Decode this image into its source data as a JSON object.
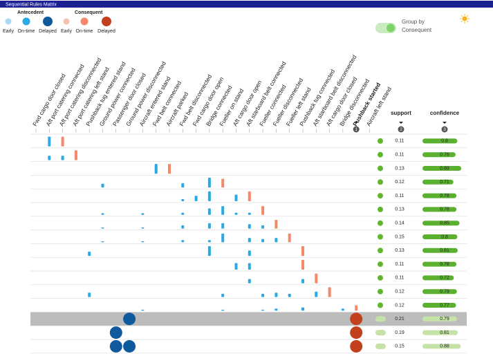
{
  "window": {
    "title": "Sequential Rules Matrix"
  },
  "legend": {
    "antecedent": {
      "label": "Antecedent",
      "items": [
        {
          "name": "Early",
          "color": "#a9d9f2"
        },
        {
          "name": "On-time",
          "color": "#2aa9e4"
        },
        {
          "name": "Delayed",
          "color": "#0e5a9c"
        }
      ]
    },
    "consequent": {
      "label": "Consequent",
      "items": [
        {
          "name": "Early",
          "color": "#f8c1b1"
        },
        {
          "name": "On-time",
          "color": "#f5876a"
        },
        {
          "name": "Delayed",
          "color": "#c2401e"
        }
      ]
    }
  },
  "toggle": {
    "lines": [
      "Group by",
      "Consequent"
    ],
    "on": true
  },
  "columns": [
    "Fwd cargo door closed",
    "Aft port catering connected",
    "Aft port catering disconnected",
    "Aft port catering left stand",
    "Pushback tug entered stand",
    "Ground power connected",
    "Passenger door closed",
    "Ground power disconnected",
    "Aircraft entered stand",
    "Fwd belt connected",
    "Aircraft parked",
    "Fwd belt disconnected",
    "Fwd cargo door open",
    "Bridge connected",
    "Fueller on stand",
    "Aft cargo door open",
    "Aft starboard belt connected",
    "Fueller connected",
    "Fueller disconnected",
    "Fueller left stand",
    "Pushback tug connected",
    "Aft starboard belt disconnected",
    "Aft cargo door closed",
    "Bridge disconnected",
    "Pushback started",
    "Aircraft left stand"
  ],
  "sorted_column": {
    "index": 24,
    "badge": "1"
  },
  "metrics": [
    {
      "label": "support",
      "badge": "2"
    },
    {
      "label": "confidence",
      "badge": "3"
    }
  ],
  "selected_row": 13,
  "group_rows": [
    13,
    14,
    15
  ],
  "rows": [
    {
      "support": 0.11,
      "confidence": 0.8,
      "marks": [
        {
          "col": 1,
          "role": "antecedent",
          "status": 1,
          "h": 0.9
        },
        {
          "col": 2,
          "role": "consequent",
          "status": 1,
          "h": 0.9
        }
      ]
    },
    {
      "support": 0.11,
      "confidence": 0.76,
      "marks": [
        {
          "col": 1,
          "role": "antecedent",
          "status": 1,
          "h": 0.4
        },
        {
          "col": 2,
          "role": "antecedent",
          "status": 1,
          "h": 0.4
        },
        {
          "col": 3,
          "role": "consequent",
          "status": 1,
          "h": 0.9
        }
      ]
    },
    {
      "support": 0.13,
      "confidence": 0.89,
      "marks": [
        {
          "col": 9,
          "role": "antecedent",
          "status": 1,
          "h": 0.9
        },
        {
          "col": 10,
          "role": "consequent",
          "status": 1,
          "h": 0.9
        }
      ]
    },
    {
      "support": 0.12,
      "confidence": 0.71,
      "marks": [
        {
          "col": 5,
          "role": "antecedent",
          "status": 1,
          "h": 0.35
        },
        {
          "col": 11,
          "role": "antecedent",
          "status": 1,
          "h": 0.4
        },
        {
          "col": 13,
          "role": "antecedent",
          "status": 1,
          "h": 0.9
        },
        {
          "col": 14,
          "role": "consequent",
          "status": 1,
          "h": 0.8
        }
      ]
    },
    {
      "support": 0.11,
      "confidence": 0.78,
      "marks": [
        {
          "col": 11,
          "role": "antecedent",
          "status": 1,
          "h": 0.2
        },
        {
          "col": 12,
          "role": "antecedent",
          "status": 1,
          "h": 0.5
        },
        {
          "col": 13,
          "role": "antecedent",
          "status": 1,
          "h": 0.9
        },
        {
          "col": 15,
          "role": "antecedent",
          "status": 1,
          "h": 0.6
        },
        {
          "col": 16,
          "role": "consequent",
          "status": 1,
          "h": 0.9
        }
      ]
    },
    {
      "support": 0.13,
      "confidence": 0.78,
      "marks": [
        {
          "col": 5,
          "role": "antecedent",
          "status": 1,
          "h": 0.15
        },
        {
          "col": 8,
          "role": "antecedent",
          "status": 1,
          "h": 0.15
        },
        {
          "col": 11,
          "role": "antecedent",
          "status": 1,
          "h": 0.2
        },
        {
          "col": 13,
          "role": "antecedent",
          "status": 1,
          "h": 0.6
        },
        {
          "col": 14,
          "role": "antecedent",
          "status": 1,
          "h": 0.8
        },
        {
          "col": 15,
          "role": "antecedent",
          "status": 1,
          "h": 0.2
        },
        {
          "col": 16,
          "role": "antecedent",
          "status": 1,
          "h": 0.2
        },
        {
          "col": 17,
          "role": "consequent",
          "status": 1,
          "h": 0.8
        }
      ]
    },
    {
      "support": 0.14,
      "confidence": 0.85,
      "marks": [
        {
          "col": 5,
          "role": "antecedent",
          "status": 1,
          "h": 0.1
        },
        {
          "col": 8,
          "role": "antecedent",
          "status": 1,
          "h": 0.1
        },
        {
          "col": 11,
          "role": "antecedent",
          "status": 1,
          "h": 0.3
        },
        {
          "col": 13,
          "role": "antecedent",
          "status": 1,
          "h": 0.5
        },
        {
          "col": 14,
          "role": "antecedent",
          "status": 1,
          "h": 0.5
        },
        {
          "col": 16,
          "role": "antecedent",
          "status": 1,
          "h": 0.4
        },
        {
          "col": 17,
          "role": "antecedent",
          "status": 1,
          "h": 0.3
        },
        {
          "col": 18,
          "role": "consequent",
          "status": 1,
          "h": 0.8
        }
      ]
    },
    {
      "support": 0.15,
      "confidence": 0.8,
      "marks": [
        {
          "col": 5,
          "role": "antecedent",
          "status": 1,
          "h": 0.1
        },
        {
          "col": 8,
          "role": "antecedent",
          "status": 1,
          "h": 0.1
        },
        {
          "col": 11,
          "role": "antecedent",
          "status": 1,
          "h": 0.2
        },
        {
          "col": 13,
          "role": "antecedent",
          "status": 1,
          "h": 0.2
        },
        {
          "col": 14,
          "role": "antecedent",
          "status": 1,
          "h": 0.8
        },
        {
          "col": 16,
          "role": "antecedent",
          "status": 1,
          "h": 0.4
        },
        {
          "col": 17,
          "role": "antecedent",
          "status": 1,
          "h": 0.3
        },
        {
          "col": 18,
          "role": "antecedent",
          "status": 1,
          "h": 0.4
        },
        {
          "col": 19,
          "role": "consequent",
          "status": 1,
          "h": 0.8
        }
      ]
    },
    {
      "support": 0.13,
      "confidence": 0.81,
      "marks": [
        {
          "col": 4,
          "role": "antecedent",
          "status": 1,
          "h": 0.4
        },
        {
          "col": 13,
          "role": "antecedent",
          "status": 1,
          "h": 0.9
        },
        {
          "col": 16,
          "role": "antecedent",
          "status": 1,
          "h": 0.5
        },
        {
          "col": 20,
          "role": "consequent",
          "status": 1,
          "h": 0.9
        }
      ]
    },
    {
      "support": 0.11,
      "confidence": 0.78,
      "marks": [
        {
          "col": 15,
          "role": "antecedent",
          "status": 1,
          "h": 0.6
        },
        {
          "col": 16,
          "role": "antecedent",
          "status": 1,
          "h": 0.6
        },
        {
          "col": 20,
          "role": "consequent",
          "status": 1,
          "h": 0.9
        }
      ]
    },
    {
      "support": 0.11,
      "confidence": 0.72,
      "marks": [
        {
          "col": 16,
          "role": "antecedent",
          "status": 1,
          "h": 0.4
        },
        {
          "col": 20,
          "role": "antecedent",
          "status": 1,
          "h": 0.4
        },
        {
          "col": 21,
          "role": "consequent",
          "status": 1,
          "h": 0.9
        }
      ]
    },
    {
      "support": 0.12,
      "confidence": 0.79,
      "marks": [
        {
          "col": 4,
          "role": "antecedent",
          "status": 1,
          "h": 0.4
        },
        {
          "col": 14,
          "role": "antecedent",
          "status": 1,
          "h": 0.3
        },
        {
          "col": 17,
          "role": "antecedent",
          "status": 1,
          "h": 0.3
        },
        {
          "col": 18,
          "role": "antecedent",
          "status": 1,
          "h": 0.4
        },
        {
          "col": 19,
          "role": "antecedent",
          "status": 1,
          "h": 0.3
        },
        {
          "col": 21,
          "role": "antecedent",
          "status": 1,
          "h": 0.5
        },
        {
          "col": 22,
          "role": "consequent",
          "status": 1,
          "h": 0.9
        }
      ]
    },
    {
      "support": 0.12,
      "confidence": 0.77,
      "marks": [
        {
          "col": 8,
          "role": "antecedent",
          "status": 1,
          "h": 0.1
        },
        {
          "col": 14,
          "role": "antecedent",
          "status": 1,
          "h": 0.1
        },
        {
          "col": 17,
          "role": "antecedent",
          "status": 1,
          "h": 0.1
        },
        {
          "col": 18,
          "role": "antecedent",
          "status": 1,
          "h": 0.2
        },
        {
          "col": 20,
          "role": "antecedent",
          "status": 1,
          "h": 0.3
        },
        {
          "col": 23,
          "role": "antecedent",
          "status": 1,
          "h": 0.2
        },
        {
          "col": 24,
          "role": "consequent",
          "status": 1,
          "h": 0.5
        }
      ]
    },
    {
      "support": 0.21,
      "confidence": 0.79,
      "marks": [
        {
          "col": 7,
          "role": "antecedent",
          "status": 2,
          "h": 1
        },
        {
          "col": 24,
          "role": "consequent",
          "status": 2,
          "h": 1
        }
      ]
    },
    {
      "support": 0.19,
      "confidence": 0.81,
      "marks": [
        {
          "col": 6,
          "role": "antecedent",
          "status": 2,
          "h": 1
        },
        {
          "col": 24,
          "role": "consequent",
          "status": 2,
          "h": 1
        }
      ]
    },
    {
      "support": 0.15,
      "confidence": 0.88,
      "marks": [
        {
          "col": 6,
          "role": "antecedent",
          "status": 2,
          "h": 1
        },
        {
          "col": 7,
          "role": "antecedent",
          "status": 2,
          "h": 1
        },
        {
          "col": 24,
          "role": "consequent",
          "status": 2,
          "h": 1
        }
      ]
    }
  ]
}
